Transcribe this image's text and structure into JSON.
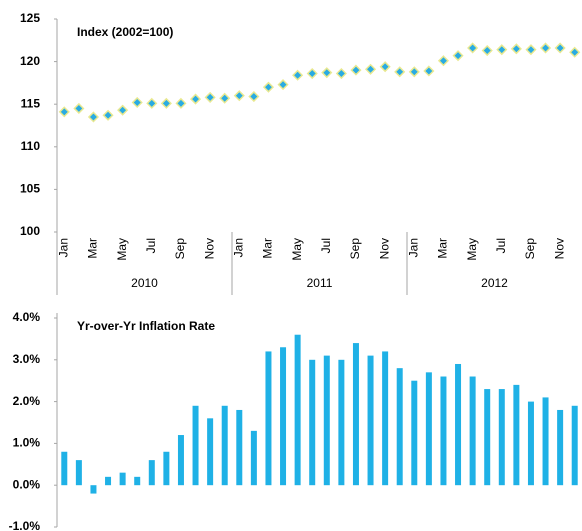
{
  "chart_data": [
    {
      "type": "line",
      "title": "Index (2002=100)",
      "show_line": false,
      "marker": "diamond",
      "color": "#29abe2",
      "edge_color": "#e8e890",
      "categories": [
        "Jan",
        null,
        "Mar",
        null,
        "May",
        null,
        "Jul",
        null,
        "Sep",
        null,
        "Nov",
        null,
        "Jan",
        null,
        "Mar",
        null,
        "May",
        null,
        "Jul",
        null,
        "Sep",
        null,
        "Nov",
        null,
        "Jan",
        null,
        "Mar",
        null,
        "May",
        null,
        "Jul",
        null,
        "Sep",
        null,
        "Nov",
        null
      ],
      "groups": [
        "2010",
        "2011",
        "2012"
      ],
      "values": [
        114.1,
        114.5,
        113.5,
        113.7,
        114.3,
        115.2,
        115.1,
        115.1,
        115.1,
        115.6,
        115.8,
        115.7,
        116.0,
        115.9,
        117.0,
        117.3,
        118.4,
        118.6,
        118.7,
        118.6,
        119.0,
        119.1,
        119.4,
        118.8,
        118.8,
        118.9,
        120.1,
        120.7,
        121.6,
        121.3,
        121.4,
        121.5,
        121.4,
        121.6,
        121.6,
        121.1
      ],
      "ylim": [
        100,
        125
      ],
      "yticks": [
        100,
        105,
        110,
        115,
        120,
        125
      ]
    },
    {
      "type": "bar",
      "title": "Yr-over-Yr Inflation Rate",
      "color": "#1fb1e6",
      "values": [
        0.8,
        0.6,
        -0.2,
        0.2,
        0.3,
        0.2,
        0.6,
        0.8,
        1.2,
        1.9,
        1.6,
        1.9,
        1.8,
        1.3,
        3.2,
        3.3,
        3.6,
        3.0,
        3.1,
        3.0,
        3.4,
        3.1,
        3.2,
        2.8,
        2.5,
        2.7,
        2.6,
        2.9,
        2.6,
        2.3,
        2.3,
        2.4,
        2.0,
        2.1,
        1.8,
        1.9
      ],
      "ylim": [
        -1,
        4
      ],
      "yticks": [
        {
          "value": -1,
          "label": "-1.0%"
        },
        {
          "value": 0,
          "label": "0.0%"
        },
        {
          "value": 1,
          "label": "1.0%"
        },
        {
          "value": 2,
          "label": "2.0%"
        },
        {
          "value": 3,
          "label": "3.0%"
        },
        {
          "value": 4,
          "label": "4.0%"
        }
      ]
    }
  ]
}
